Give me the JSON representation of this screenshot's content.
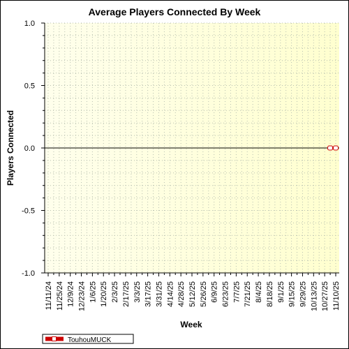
{
  "chart_data": {
    "type": "line",
    "title": "Average Players Connected By Week",
    "xlabel": "Week",
    "ylabel": "Players Connected",
    "ylim": [
      -1.0,
      1.0
    ],
    "yticks": [
      "1.0",
      "0.5",
      "0.0",
      "-0.5",
      "-1.0"
    ],
    "categories": [
      "11/11/24",
      "11/25/24",
      "12/9/24",
      "12/23/24",
      "1/6/25",
      "1/20/25",
      "2/3/25",
      "2/17/25",
      "3/3/25",
      "3/17/25",
      "3/31/25",
      "4/14/25",
      "4/28/25",
      "5/12/25",
      "5/26/25",
      "6/9/25",
      "6/23/25",
      "7/7/25",
      "7/21/25",
      "8/4/25",
      "8/18/25",
      "9/1/25",
      "9/15/25",
      "9/29/25",
      "10/13/25",
      "10/27/25",
      "11/10/25"
    ],
    "series": [
      {
        "name": "TouhouMUCK",
        "color": "#cc0000",
        "points": [
          {
            "x": "11/3/25",
            "y": 0
          },
          {
            "x": "11/10/25",
            "y": 0
          }
        ]
      }
    ],
    "grid": true,
    "legend": "bottom-left",
    "plot_background": [
      "#ffffe6",
      "#ffffd0"
    ]
  }
}
